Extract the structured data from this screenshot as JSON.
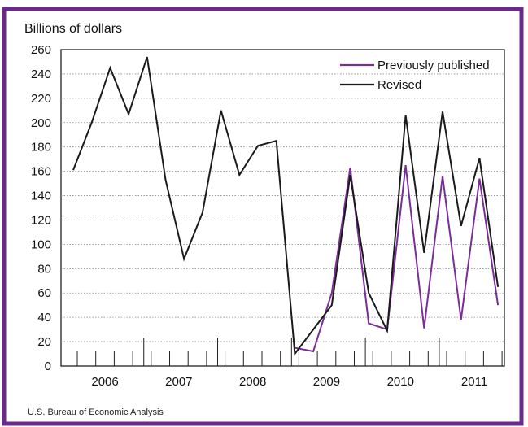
{
  "colors": {
    "frame": "#6a2a8a",
    "previous": "#7b2d97",
    "revised": "#1a1a1a",
    "grid": "#888888"
  },
  "chart_data": {
    "type": "line",
    "ylabel": "Billions of dollars",
    "ylim": [
      0,
      260
    ],
    "yticks": [
      "0",
      "20",
      "40",
      "60",
      "80",
      "100",
      "120",
      "140",
      "160",
      "180",
      "200",
      "220",
      "240",
      "260"
    ],
    "grid": "horizontal-dotted",
    "legend_position": "top-right",
    "year_labels": [
      "2006",
      "2007",
      "2008",
      "2009",
      "2010",
      "2011"
    ],
    "x_unit": "month",
    "series": [
      {
        "name": "Revised",
        "points": [
          [
            0,
            161
          ],
          [
            1,
            200
          ],
          [
            2,
            245
          ],
          [
            3,
            207
          ],
          [
            4,
            254
          ],
          [
            5,
            153
          ],
          [
            6,
            88
          ],
          [
            7,
            126
          ],
          [
            8,
            210
          ],
          [
            9,
            157
          ],
          [
            10,
            181
          ],
          [
            11,
            185
          ],
          [
            12,
            10
          ],
          [
            13,
            30
          ],
          [
            14,
            50
          ],
          [
            15,
            157
          ],
          [
            16,
            60
          ],
          [
            17,
            29
          ],
          [
            18,
            206
          ],
          [
            19,
            93
          ],
          [
            20,
            209
          ],
          [
            21,
            115
          ],
          [
            22,
            171
          ],
          [
            23,
            65
          ]
        ]
      },
      {
        "name": "Previously published",
        "points": [
          [
            12,
            15
          ],
          [
            13,
            12
          ],
          [
            14,
            60
          ],
          [
            15,
            163
          ],
          [
            16,
            35
          ],
          [
            17,
            30
          ],
          [
            18,
            165
          ],
          [
            19,
            31
          ],
          [
            20,
            156
          ],
          [
            21,
            38
          ],
          [
            22,
            154
          ],
          [
            23,
            50
          ]
        ]
      }
    ]
  },
  "source": "U.S. Bureau of Economic Analysis"
}
